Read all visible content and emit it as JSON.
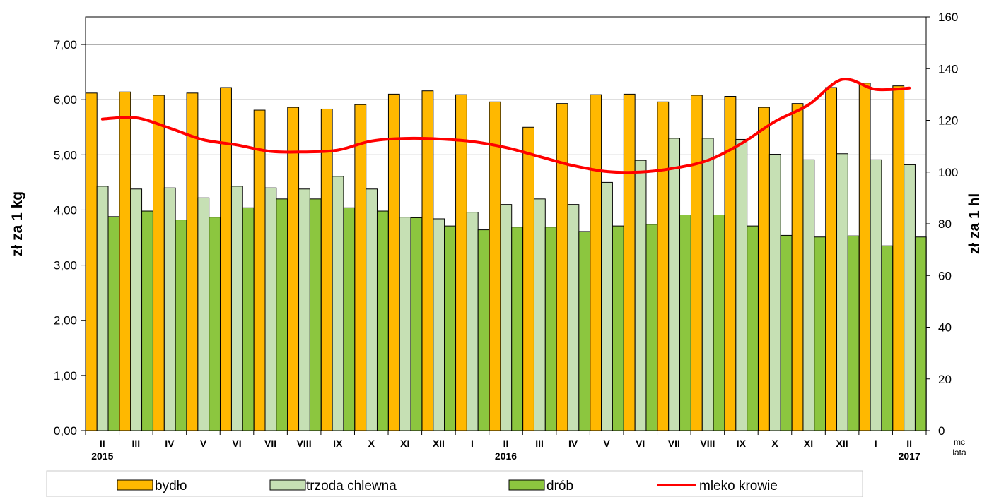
{
  "chart_data": {
    "type": "bar",
    "categories": [
      "II",
      "III",
      "IV",
      "V",
      "VI",
      "VII",
      "VIII",
      "IX",
      "X",
      "XI",
      "XII",
      "I",
      "II",
      "III",
      "IV",
      "V",
      "VI",
      "VII",
      "VIII",
      "IX",
      "X",
      "XI",
      "XII",
      "I",
      "II"
    ],
    "year_labels": [
      {
        "text": "2015",
        "at_category": 0
      },
      {
        "text": "2016",
        "at_category": 12
      },
      {
        "text": "2017",
        "at_category": 24
      }
    ],
    "x_axis_corner_labels": [
      "mc",
      "lata"
    ],
    "ylabel": "zł za 1 kg",
    "y2label": "zł za 1 hl",
    "ylim": [
      0,
      7.5
    ],
    "yticks": [
      "0,00",
      "1,00",
      "2,00",
      "3,00",
      "4,00",
      "5,00",
      "6,00",
      "7,00"
    ],
    "ytick_values": [
      0,
      1,
      2,
      3,
      4,
      5,
      6,
      7
    ],
    "y2lim": [
      0,
      160
    ],
    "y2ticks": [
      "0",
      "20",
      "40",
      "60",
      "80",
      "100",
      "120",
      "140",
      "160"
    ],
    "y2tick_values": [
      0,
      20,
      40,
      60,
      80,
      100,
      120,
      140,
      160
    ],
    "grid": "horizontal",
    "legend_position": "bottom",
    "series": [
      {
        "name": "bydło",
        "type": "bar",
        "axis": "left",
        "color": "#FFB800",
        "values": [
          6.12,
          6.14,
          6.08,
          6.12,
          6.22,
          5.81,
          5.86,
          5.83,
          5.91,
          6.1,
          6.16,
          6.09,
          5.96,
          5.5,
          5.93,
          6.09,
          6.1,
          5.96,
          6.08,
          6.06,
          5.86,
          5.93,
          6.22,
          6.3,
          6.25
        ]
      },
      {
        "name": "trzoda chlewna",
        "type": "bar",
        "axis": "left",
        "color": "#C6E0B4",
        "values": [
          4.43,
          4.38,
          4.4,
          4.22,
          4.43,
          4.4,
          4.38,
          4.61,
          4.38,
          3.87,
          3.84,
          3.96,
          4.1,
          4.2,
          4.1,
          4.5,
          4.9,
          5.3,
          5.3,
          5.28,
          5.01,
          4.91,
          5.02,
          4.91,
          4.82
        ]
      },
      {
        "name": "drób",
        "type": "bar",
        "axis": "left",
        "color": "#8CC63F",
        "values": [
          3.88,
          3.98,
          3.82,
          3.87,
          4.04,
          4.2,
          4.2,
          4.04,
          3.98,
          3.86,
          3.71,
          3.64,
          3.69,
          3.69,
          3.61,
          3.71,
          3.74,
          3.91,
          3.91,
          3.71,
          3.54,
          3.51,
          3.53,
          3.35,
          3.51
        ]
      },
      {
        "name": "mleko krowie",
        "type": "line",
        "axis": "right",
        "color": "#FF0000",
        "values": [
          120.5,
          121.0,
          117.0,
          112.5,
          110.5,
          108.0,
          107.8,
          108.5,
          112.0,
          113.0,
          112.8,
          111.8,
          109.5,
          106.0,
          102.5,
          100.2,
          100.0,
          101.5,
          104.5,
          111.0,
          119.5,
          126.0,
          135.8,
          132.0,
          132.5
        ]
      }
    ]
  },
  "legend": {
    "items": [
      {
        "label": "bydło",
        "kind": "box",
        "color": "#FFB800"
      },
      {
        "label": "trzoda chlewna",
        "kind": "box",
        "color": "#C6E0B4"
      },
      {
        "label": "drób",
        "kind": "box",
        "color": "#8CC63F"
      },
      {
        "label": "mleko krowie",
        "kind": "line",
        "color": "#FF0000"
      }
    ]
  }
}
